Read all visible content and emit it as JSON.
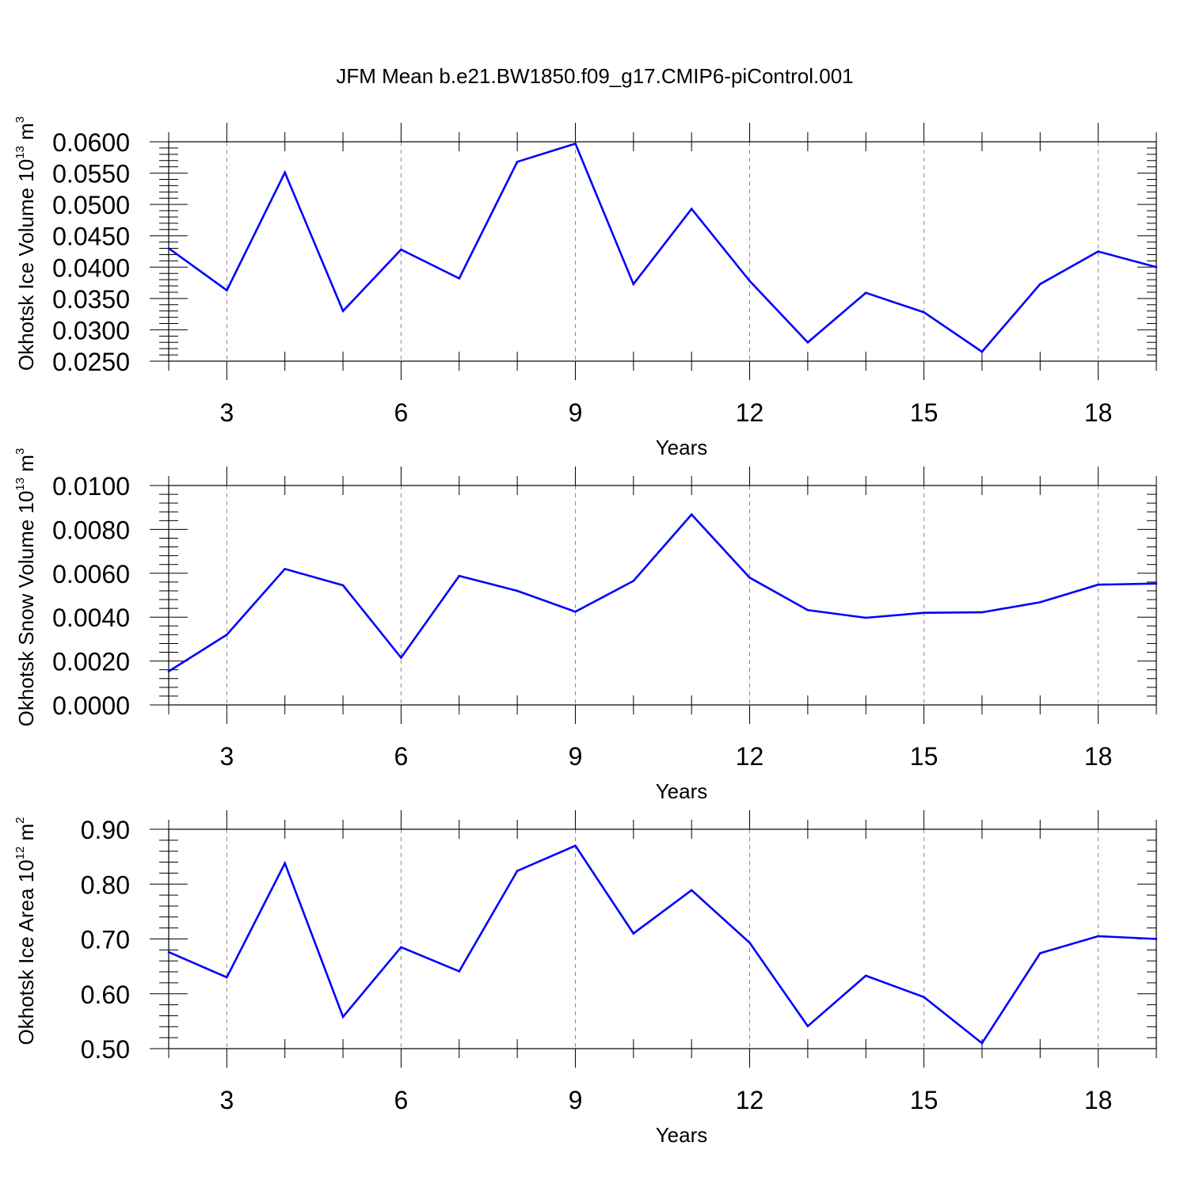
{
  "figure": {
    "title": "JFM Mean b.e21.BW1850.f09_g17.CMIP6-piControl.001"
  },
  "chart_data": [
    {
      "type": "line",
      "xlabel": "Years",
      "ylabel": {
        "base": "Okhotsk Ice Volume 10",
        "exp": "13",
        "unit": " m",
        "unit_exp": "3"
      },
      "xlim": [
        2,
        19
      ],
      "ylim": [
        0.025,
        0.06
      ],
      "xticks": [
        3,
        6,
        9,
        12,
        15,
        18
      ],
      "yticks": [
        "0.0250",
        "0.0300",
        "0.0350",
        "0.0400",
        "0.0450",
        "0.0500",
        "0.0550",
        "0.0600"
      ],
      "grid": "dashed vertical lines at x ticks",
      "series": [
        {
          "color": "#0000ff",
          "x": [
            2,
            3,
            4,
            5,
            6,
            7,
            8,
            9,
            10,
            11,
            12,
            13,
            14,
            15,
            16,
            17,
            18,
            19
          ],
          "values": [
            0.043,
            0.0363,
            0.0551,
            0.033,
            0.0428,
            0.0382,
            0.0568,
            0.0597,
            0.0373,
            0.0493,
            0.0378,
            0.028,
            0.0359,
            0.0328,
            0.0265,
            0.0373,
            0.0425,
            0.04
          ]
        }
      ]
    },
    {
      "type": "line",
      "xlabel": "Years",
      "ylabel": {
        "base": "Okhotsk Snow Volume 10",
        "exp": "13",
        "unit": " m",
        "unit_exp": "3"
      },
      "xlim": [
        2,
        19
      ],
      "ylim": [
        0.0,
        0.01
      ],
      "xticks": [
        3,
        6,
        9,
        12,
        15,
        18
      ],
      "yticks": [
        "0.0000",
        "0.0020",
        "0.0040",
        "0.0060",
        "0.0080",
        "0.0100"
      ],
      "grid": "dashed vertical lines at x ticks",
      "series": [
        {
          "color": "#0000ff",
          "x": [
            2,
            3,
            4,
            5,
            6,
            7,
            8,
            9,
            10,
            11,
            12,
            13,
            14,
            15,
            16,
            17,
            18,
            19
          ],
          "values": [
            0.00153,
            0.0032,
            0.0062,
            0.00545,
            0.00215,
            0.00588,
            0.0052,
            0.00425,
            0.00565,
            0.00868,
            0.0058,
            0.00432,
            0.00397,
            0.0042,
            0.00422,
            0.00468,
            0.00548,
            0.00553
          ]
        }
      ]
    },
    {
      "type": "line",
      "xlabel": "Years",
      "ylabel": {
        "base": "Okhotsk Ice Area 10",
        "exp": "12",
        "unit": " m",
        "unit_exp": "2"
      },
      "xlim": [
        2,
        19
      ],
      "ylim": [
        0.5,
        0.9
      ],
      "xticks": [
        3,
        6,
        9,
        12,
        15,
        18
      ],
      "yticks": [
        "0.50",
        "0.60",
        "0.70",
        "0.80",
        "0.90"
      ],
      "grid": "dashed vertical lines at x ticks",
      "series": [
        {
          "color": "#0000ff",
          "x": [
            2,
            3,
            4,
            5,
            6,
            7,
            8,
            9,
            10,
            11,
            12,
            13,
            14,
            15,
            16,
            17,
            18,
            19
          ],
          "values": [
            0.676,
            0.63,
            0.838,
            0.558,
            0.685,
            0.641,
            0.824,
            0.87,
            0.71,
            0.789,
            0.693,
            0.541,
            0.633,
            0.594,
            0.51,
            0.674,
            0.705,
            0.7
          ]
        }
      ]
    }
  ]
}
